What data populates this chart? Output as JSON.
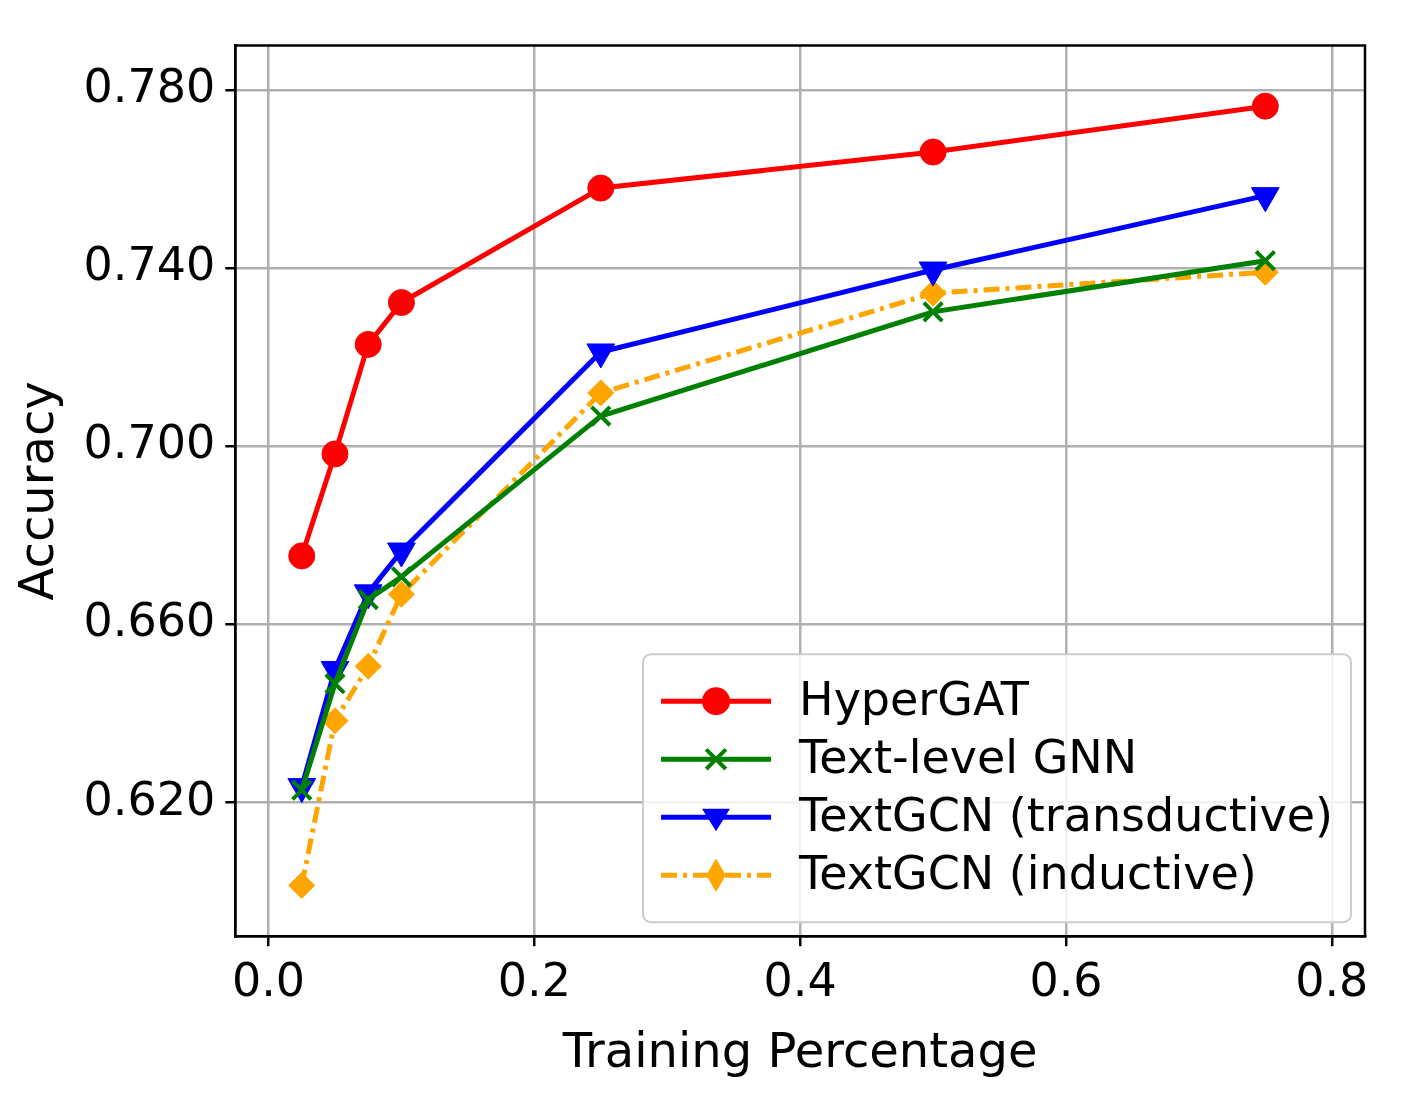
{
  "chart_data": {
    "type": "line",
    "xlabel": "Training Percentage",
    "ylabel": "Accuracy",
    "x": [
      0.025,
      0.05,
      0.075,
      0.1,
      0.25,
      0.5,
      0.75
    ],
    "series": [
      {
        "name": "HyperGAT",
        "color": "#ff0000",
        "marker": "circle",
        "line_style": "solid",
        "values": [
          0.6754,
          0.6983,
          0.7229,
          0.7323,
          0.758,
          0.7661,
          0.7764
        ]
      },
      {
        "name": "Text-level GNN",
        "color": "#008000",
        "marker": "cross",
        "line_style": "solid",
        "values": [
          0.6228,
          0.6467,
          0.6656,
          0.6707,
          0.7068,
          0.7302,
          0.7417
        ]
      },
      {
        "name": "TextGCN (transductive)",
        "color": "#0000ff",
        "marker": "triangle",
        "line_style": "solid",
        "values": [
          0.6236,
          0.6499,
          0.6671,
          0.6765,
          0.7212,
          0.7396,
          0.7563
        ]
      },
      {
        "name": "TextGCN (inductive)",
        "color": "#ffa500",
        "marker": "diamond",
        "line_style": "dashed",
        "values": [
          0.6014,
          0.6384,
          0.6506,
          0.6668,
          0.712,
          0.7344,
          0.7391
        ]
      }
    ],
    "xlim": [
      -0.025,
      0.825
    ],
    "ylim": [
      0.59,
      0.79
    ],
    "xticks": [
      {
        "value": 0,
        "label": "0.0"
      },
      0.2,
      0.4,
      0.6,
      0.8
    ],
    "yticks": [
      {
        "value": 0.62,
        "label": "0.620"
      },
      {
        "value": 0.66,
        "label": "0.660"
      },
      {
        "value": 0.7,
        "label": "0.700"
      },
      {
        "value": 0.74,
        "label": "0.740"
      },
      {
        "value": 0.78,
        "label": "0.780"
      }
    ],
    "grid": true,
    "legend": "bottom right"
  }
}
